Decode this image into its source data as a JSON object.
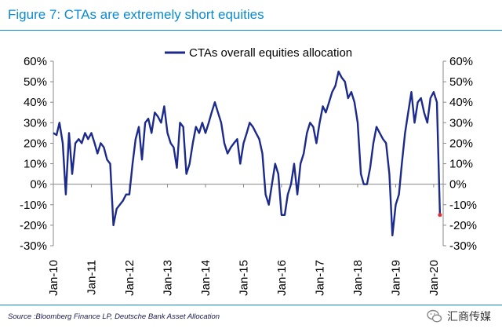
{
  "header": {
    "title": "Figure 7: CTAs are extremely short equities"
  },
  "footer": {
    "source": "Source :Bloomberg Finance LP, Deutsche Bank Asset Allocation"
  },
  "watermark": {
    "text": "汇商传媒",
    "icon": "wechat-logo-icon"
  },
  "chart_data": {
    "type": "line",
    "title": "Figure 7: CTAs are extremely short equities",
    "xlabel": "",
    "ylabel": "",
    "ylim": [
      -30,
      60
    ],
    "yticks": [
      60,
      50,
      40,
      30,
      20,
      10,
      0,
      -10,
      -20,
      -30
    ],
    "ytick_labels": [
      "60%",
      "50%",
      "40%",
      "30%",
      "20%",
      "10%",
      "0%",
      "-10%",
      "-20%",
      "-30%"
    ],
    "secondary_y_axis": true,
    "x_ticks": [
      "Jan-10",
      "Jan-11",
      "Jan-12",
      "Jan-13",
      "Jan-14",
      "Jan-15",
      "Jan-16",
      "Jan-17",
      "Jan-18",
      "Jan-19",
      "Jan-20"
    ],
    "grid": false,
    "legend": "top-center",
    "colors": {
      "series": "#1c2a8c",
      "marker": "#e03030"
    },
    "series": [
      {
        "name": "CTAs overall equities allocation",
        "x": [
          "2010-01",
          "2010-02",
          "2010-03",
          "2010-04",
          "2010-05",
          "2010-06",
          "2010-07",
          "2010-08",
          "2010-09",
          "2010-10",
          "2010-11",
          "2010-12",
          "2011-01",
          "2011-02",
          "2011-03",
          "2011-04",
          "2011-05",
          "2011-06",
          "2011-07",
          "2011-08",
          "2011-09",
          "2011-10",
          "2011-11",
          "2011-12",
          "2012-01",
          "2012-02",
          "2012-03",
          "2012-04",
          "2012-05",
          "2012-06",
          "2012-07",
          "2012-08",
          "2012-09",
          "2012-10",
          "2012-11",
          "2012-12",
          "2013-01",
          "2013-02",
          "2013-03",
          "2013-04",
          "2013-05",
          "2013-06",
          "2013-07",
          "2013-08",
          "2013-09",
          "2013-10",
          "2013-11",
          "2013-12",
          "2014-01",
          "2014-02",
          "2014-03",
          "2014-04",
          "2014-05",
          "2014-06",
          "2014-07",
          "2014-08",
          "2014-09",
          "2014-10",
          "2014-11",
          "2014-12",
          "2015-01",
          "2015-02",
          "2015-03",
          "2015-04",
          "2015-05",
          "2015-06",
          "2015-07",
          "2015-08",
          "2015-09",
          "2015-10",
          "2015-11",
          "2015-12",
          "2016-01",
          "2016-02",
          "2016-03",
          "2016-04",
          "2016-05",
          "2016-06",
          "2016-07",
          "2016-08",
          "2016-09",
          "2016-10",
          "2016-11",
          "2016-12",
          "2017-01",
          "2017-02",
          "2017-03",
          "2017-04",
          "2017-05",
          "2017-06",
          "2017-07",
          "2017-08",
          "2017-09",
          "2017-10",
          "2017-11",
          "2017-12",
          "2018-01",
          "2018-02",
          "2018-03",
          "2018-04",
          "2018-05",
          "2018-06",
          "2018-07",
          "2018-08",
          "2018-09",
          "2018-10",
          "2018-11",
          "2018-12",
          "2019-01",
          "2019-02",
          "2019-03",
          "2019-04",
          "2019-05",
          "2019-06",
          "2019-07",
          "2019-08",
          "2019-09",
          "2019-10",
          "2019-11",
          "2019-12",
          "2020-01",
          "2020-02",
          "2020-03"
        ],
        "values": [
          25,
          24,
          30,
          20,
          -5,
          25,
          5,
          20,
          22,
          20,
          25,
          22,
          25,
          20,
          15,
          20,
          18,
          12,
          10,
          -20,
          -12,
          -10,
          -8,
          -5,
          -5,
          10,
          22,
          28,
          12,
          30,
          32,
          25,
          35,
          33,
          30,
          38,
          25,
          20,
          18,
          8,
          30,
          28,
          5,
          10,
          20,
          28,
          25,
          30,
          25,
          30,
          35,
          40,
          35,
          30,
          20,
          15,
          18,
          20,
          22,
          10,
          20,
          25,
          30,
          28,
          25,
          22,
          15,
          -5,
          -10,
          0,
          10,
          5,
          -15,
          -15,
          -5,
          0,
          10,
          -5,
          10,
          15,
          25,
          30,
          28,
          20,
          30,
          38,
          35,
          40,
          45,
          48,
          55,
          52,
          50,
          42,
          45,
          40,
          30,
          5,
          0,
          0,
          8,
          20,
          28,
          25,
          22,
          20,
          5,
          -25,
          -10,
          -5,
          10,
          25,
          35,
          45,
          30,
          40,
          42,
          35,
          30,
          42,
          45,
          40,
          -15
        ]
      }
    ]
  }
}
